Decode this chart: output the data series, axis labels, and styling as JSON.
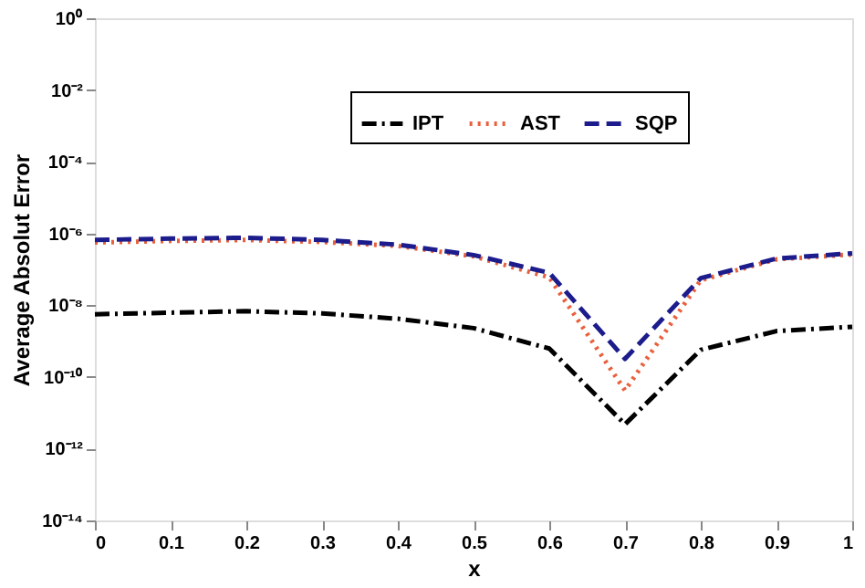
{
  "chart_data": {
    "type": "line",
    "xlabel": "x",
    "ylabel": "Average Absolut Error",
    "x": [
      0,
      0.1,
      0.2,
      0.3,
      0.4,
      0.5,
      0.6,
      0.7,
      0.8,
      0.9,
      1
    ],
    "series": [
      {
        "name": "IPT",
        "color": "#000000",
        "line_style": "dashdot",
        "values": [
          5.6e-09,
          6.2e-09,
          6.8e-09,
          5.9e-09,
          4.2e-09,
          2.3e-09,
          6.2e-10,
          4.8e-12,
          5.7e-10,
          1.9e-09,
          2.5e-09
        ]
      },
      {
        "name": "AST",
        "color": "#e8603c",
        "line_style": "dotted",
        "values": [
          5.6e-07,
          6.2e-07,
          6.6e-07,
          5.8e-07,
          4.5e-07,
          2.3e-07,
          6e-08,
          4.2e-11,
          5e-08,
          1.9e-07,
          2.6e-07
        ]
      },
      {
        "name": "SQP",
        "color": "#1c1c8c",
        "line_style": "dashed",
        "values": [
          6.6e-07,
          7.2e-07,
          7.6e-07,
          6.6e-07,
          4.9e-07,
          2.5e-07,
          8e-08,
          3.2e-10,
          5.7e-08,
          2e-07,
          2.8e-07
        ]
      }
    ],
    "log": "y",
    "xlim": [
      0,
      1
    ],
    "xticks": [
      0,
      0.1,
      0.2,
      0.3,
      0.4,
      0.5,
      0.6,
      0.7,
      0.8,
      0.9,
      1
    ],
    "ylim": [
      1e-14,
      1
    ],
    "yticks": [
      {
        "value": 1e-14,
        "label": "10⁻¹⁴"
      },
      {
        "value": 1e-12,
        "label": "10⁻¹²"
      },
      {
        "value": 1e-10,
        "label": "10⁻¹⁰"
      },
      {
        "value": 1e-08,
        "label": "10⁻⁸"
      },
      {
        "value": 1e-06,
        "label": "10⁻⁶"
      },
      {
        "value": 0.0001,
        "label": "10⁻⁴"
      },
      {
        "value": 0.01,
        "label": "10⁻²"
      },
      {
        "value": 1,
        "label": "10⁰"
      }
    ],
    "grid": false,
    "legend": "top",
    "marker": "none"
  }
}
